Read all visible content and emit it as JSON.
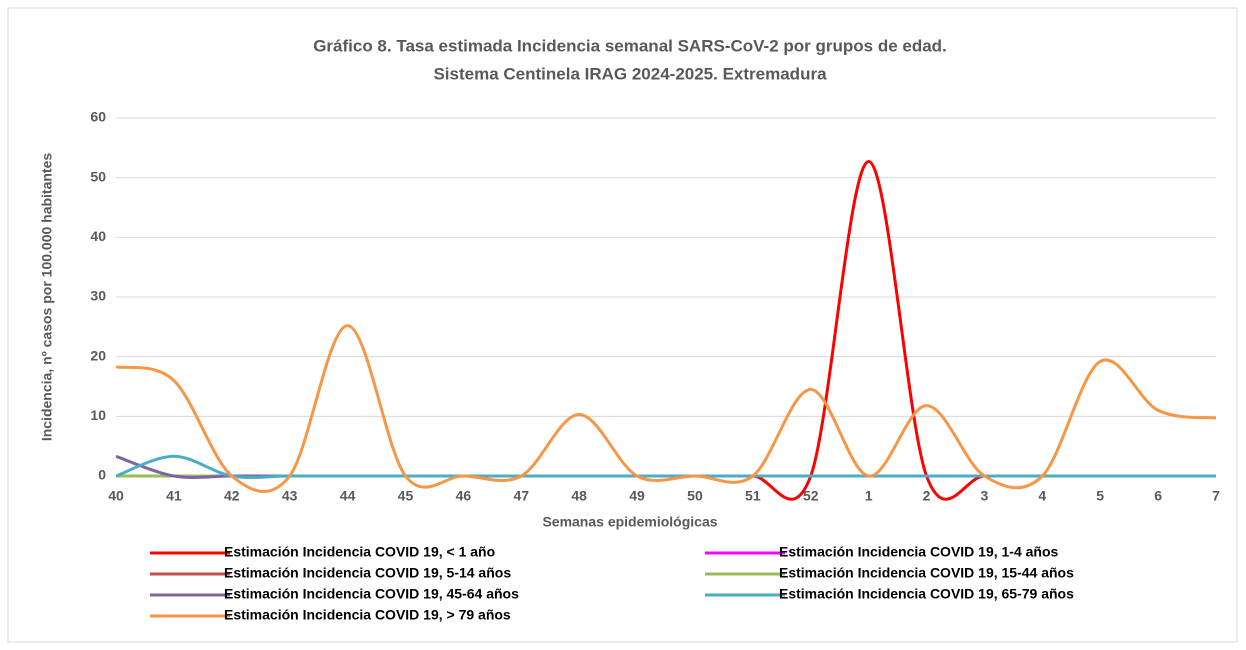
{
  "chart_data": {
    "type": "line",
    "title": [
      "Gráfico 8. Tasa estimada Incidencia semanal SARS-CoV-2 por grupos de edad.",
      "Sistema Centinela IRAG 2024-2025. Extremadura"
    ],
    "x_label": "Semanas epidemiológicas",
    "y_label": "Incidencia, nº casos por 100.000 habitantes",
    "categories": [
      "40",
      "41",
      "42",
      "43",
      "44",
      "45",
      "46",
      "47",
      "48",
      "49",
      "50",
      "51",
      "52",
      "1",
      "2",
      "3",
      "4",
      "5",
      "6",
      "7"
    ],
    "ylim": [
      0,
      60
    ],
    "yticks": [
      0,
      10,
      20,
      30,
      40,
      50,
      60
    ],
    "grid": true,
    "smooth": true,
    "legend": "bottom",
    "series": [
      {
        "name": "Estimación Incidencia COVID 19, < 1 año",
        "color": "#ff0000",
        "values": [
          0,
          0,
          0,
          0,
          0,
          0,
          0,
          0,
          0,
          0,
          0,
          0,
          0,
          52.7,
          0,
          0,
          0,
          0,
          0,
          0
        ]
      },
      {
        "name": "Estimación Incidencia COVID 19, 1-4 años",
        "color": "#ff00ff",
        "values": [
          0,
          0,
          0,
          0,
          0,
          0,
          0,
          0,
          0,
          0,
          0,
          0,
          0,
          0,
          0,
          0,
          0,
          0,
          0,
          0
        ]
      },
      {
        "name": "Estimación Incidencia COVID 19, 5-14 años",
        "color": "#c0504d",
        "values": [
          0,
          0,
          0,
          0,
          0,
          0,
          0,
          0,
          0,
          0,
          0,
          0,
          0,
          0,
          0,
          0,
          0,
          0,
          0,
          0
        ]
      },
      {
        "name": "Estimación Incidencia COVID 19, 15-44 años",
        "color": "#9bbb59",
        "values": [
          0,
          0,
          0,
          0,
          0,
          0,
          0,
          0,
          0,
          0,
          0,
          0,
          0,
          0,
          0,
          0,
          0,
          0,
          0,
          0
        ]
      },
      {
        "name": "Estimación Incidencia COVID 19, 45-64 años",
        "color": "#8064a2",
        "values": [
          3.3,
          0,
          0,
          0,
          0,
          0,
          0,
          0,
          0,
          0,
          0,
          0,
          0,
          0,
          0,
          0,
          0,
          0,
          0,
          0
        ]
      },
      {
        "name": "Estimación Incidencia COVID 19, 65-79 años",
        "color": "#4bacc6",
        "values": [
          0,
          3.3,
          0,
          0,
          0,
          0,
          0,
          0,
          0,
          0,
          0,
          0,
          0,
          0,
          0,
          0,
          0,
          0,
          0,
          0
        ]
      },
      {
        "name": "Estimación Incidencia COVID 19, > 79 años",
        "color": "#f79646",
        "values": [
          18.3,
          16,
          0,
          0,
          25.2,
          0,
          0,
          0,
          10.3,
          0,
          0,
          0,
          14.5,
          0,
          11.8,
          0,
          0,
          19.2,
          11,
          9.7
        ]
      }
    ]
  }
}
